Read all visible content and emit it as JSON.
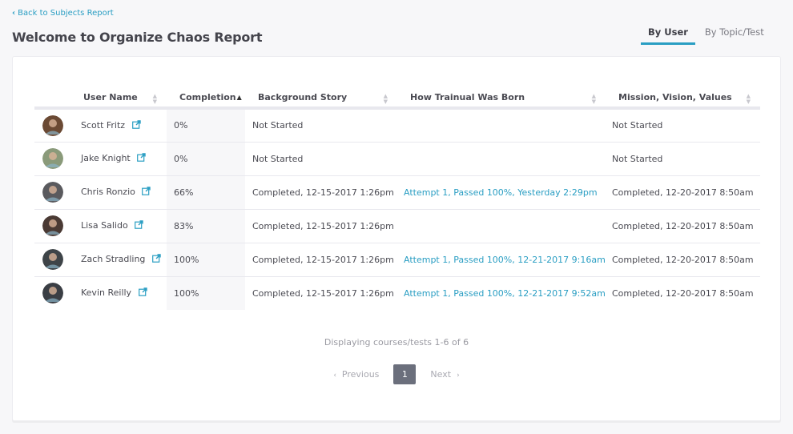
{
  "header": {
    "back_link": "Back to Subjects Report",
    "title": "Welcome to Organize Chaos Report",
    "tabs": [
      {
        "label": "By User",
        "active": true
      },
      {
        "label": "By Topic/Test",
        "active": false
      }
    ]
  },
  "colors": {
    "accent": "#2a9ec3",
    "text": "#4a4a52",
    "background": "#f7f7f9",
    "active_page": "#6b6f7c"
  },
  "table": {
    "columns": [
      {
        "label": "",
        "sortable": false
      },
      {
        "label": "User Name",
        "sortable": true
      },
      {
        "label": "Completion",
        "sortable": true,
        "sorted": "asc"
      },
      {
        "label": "Background Story",
        "sortable": true
      },
      {
        "label": "How Trainual Was Born",
        "sortable": true
      },
      {
        "label": "Mission, Vision, Values",
        "sortable": true
      }
    ],
    "rows": [
      {
        "name": "Scott Fritz",
        "completion": "0%",
        "background_story": "Not Started",
        "how_trainual_was_born": "",
        "mission_vision_values": "Not Started",
        "avatar_color": "#6b4a34"
      },
      {
        "name": "Jake Knight",
        "completion": "0%",
        "background_story": "Not Started",
        "how_trainual_was_born": "",
        "mission_vision_values": "Not Started",
        "avatar_color": "#8a9a7a"
      },
      {
        "name": "Chris Ronzio",
        "completion": "66%",
        "background_story": "Completed, 12-15-2017 1:26pm",
        "how_trainual_was_born": "Attempt 1, Passed 100%, Yesterday 2:29pm",
        "mission_vision_values": "Completed, 12-20-2017 8:50am",
        "avatar_color": "#5a5a5e"
      },
      {
        "name": "Lisa Salido",
        "completion": "83%",
        "background_story": "Completed, 12-15-2017 1:26pm",
        "how_trainual_was_born": "",
        "mission_vision_values": "Completed, 12-20-2017 8:50am",
        "avatar_color": "#4a3a34"
      },
      {
        "name": "Zach Stradling",
        "completion": "100%",
        "background_story": "Completed, 12-15-2017 1:26pm",
        "how_trainual_was_born": "Attempt 1, Passed 100%, 12-21-2017 9:16am",
        "mission_vision_values": "Completed, 12-20-2017 8:50am",
        "avatar_color": "#3e4448"
      },
      {
        "name": "Kevin Reilly",
        "completion": "100%",
        "background_story": "Completed, 12-15-2017 1:26pm",
        "how_trainual_was_born": "Attempt 1, Passed 100%, 12-21-2017 9:52am",
        "mission_vision_values": "Completed, 12-20-2017 8:50am",
        "avatar_color": "#3a3e44"
      }
    ]
  },
  "pagination": {
    "info": "Displaying courses/tests 1-6 of 6",
    "previous": "Previous",
    "next": "Next",
    "current_page": "1"
  }
}
